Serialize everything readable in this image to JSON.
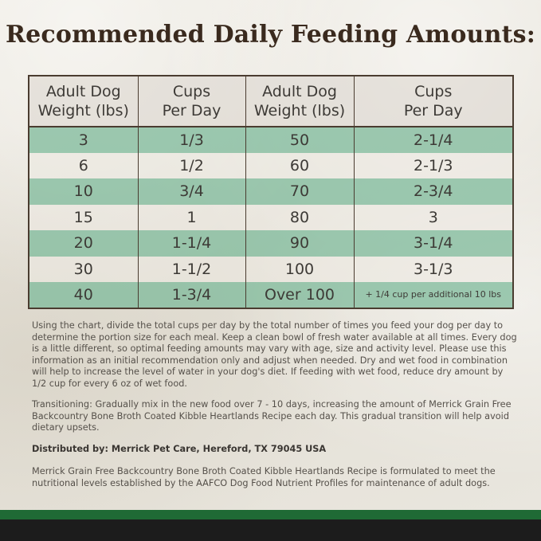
{
  "title": "Recommended Daily Feeding Amounts:",
  "table": {
    "headers": {
      "col1_line1": "Adult Dog",
      "col1_line2": "Weight (lbs)",
      "col2_line1": "Cups",
      "col2_line2": "Per Day",
      "col3_line1": "Adult Dog",
      "col3_line2": "Weight (lbs)",
      "col4_line1": "Cups",
      "col4_line2": "Per Day"
    },
    "rows": [
      {
        "w1": "3",
        "c1": "1/3",
        "w2": "50",
        "c2": "2-1/4"
      },
      {
        "w1": "6",
        "c1": "1/2",
        "w2": "60",
        "c2": "2-1/3"
      },
      {
        "w1": "10",
        "c1": "3/4",
        "w2": "70",
        "c2": "2-3/4"
      },
      {
        "w1": "15",
        "c1": "1",
        "w2": "80",
        "c2": "3"
      },
      {
        "w1": "20",
        "c1": "1-1/4",
        "w2": "90",
        "c2": "3-1/4"
      },
      {
        "w1": "30",
        "c1": "1-1/2",
        "w2": "100",
        "c2": "3-1/3"
      },
      {
        "w1": "40",
        "c1": "1-3/4",
        "w2": "Over 100",
        "c2": "+ 1/4 cup per additional 10 lbs"
      }
    ]
  },
  "instructions": "Using the chart, divide the total cups per day by the total number of times you feed your dog per day to determine the portion size for each meal. Keep a clean bowl of fresh water available at all times. Every dog is a little different, so optimal feeding amounts may vary with age, size and activity level. Please use this information as an initial recommendation only and adjust when needed. Dry and wet food in combination will help to increase the level of water in your dog's diet. If feeding with wet food, reduce dry amount by 1/2 cup for every 6 oz of wet food.",
  "transitioning": "Transitioning: Gradually mix in the new food over 7 - 10 days, increasing the amount of Merrick Grain Free Backcountry Bone Broth Coated Kibble Heartlands Recipe each day. This gradual transition will help avoid dietary upsets.",
  "distributor": "Distributed by: Merrick Pet Care, Hereford, TX 79045 USA",
  "aafco": "Merrick Grain Free Backcountry Bone Broth Coated Kibble Heartlands Recipe is formulated to meet the nutritional levels established by the AAFCO Dog Food Nutrient Profiles for maintenance of adult dogs.",
  "colors": {
    "green_row": "#7ab898",
    "title_brown": "#3a2a1e",
    "footer_green": "#1f6a35",
    "footer_dark": "#1c1c1c"
  }
}
